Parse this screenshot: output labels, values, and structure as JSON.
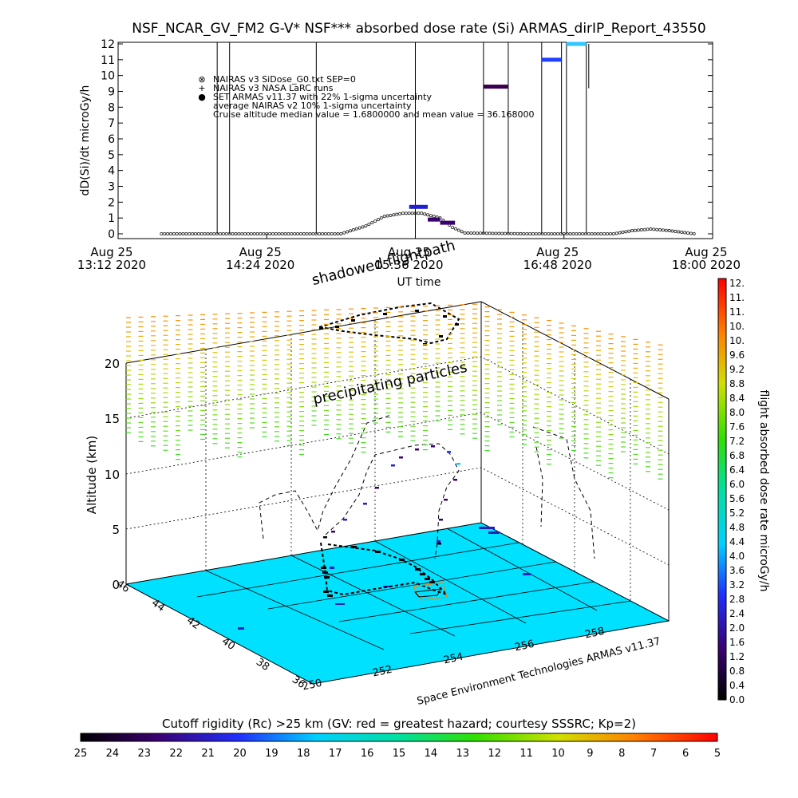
{
  "top_chart": {
    "title": "NSF_NCAR_GV_FM2 G-V* NSF*** absorbed dose rate (Si) ARMAS_dirIP_Report_43550",
    "ylabel": "dD(Si)/dt microGy/h",
    "xlabel": "UT time",
    "yticks": [
      "0",
      "1",
      "2",
      "3",
      "4",
      "5",
      "6",
      "7",
      "8",
      "9",
      "10",
      "11",
      "12"
    ],
    "xticks": [
      {
        "line1": "Aug 25",
        "line2": "13:12 2020"
      },
      {
        "line1": "Aug 25",
        "line2": "14:24 2020"
      },
      {
        "line1": "Aug 25",
        "line2": "15:36 2020"
      },
      {
        "line1": "Aug 25",
        "line2": "16:48 2020"
      },
      {
        "line1": "Aug 25",
        "line2": "18:00 2020"
      }
    ],
    "legend": [
      {
        "symbol": "⊗",
        "text": "NAIRAS v3 SiDose_G0.txt SEP=0"
      },
      {
        "symbol": "+",
        "text": "NAIRAS v3 NASA LaRC runs"
      },
      {
        "symbol": "●",
        "text": "SET ARMAS v11.37 with 22% 1-sigma uncertainty"
      },
      {
        "symbol": "",
        "text": "average NAIRAS v2 10% 1-sigma uncertainty"
      },
      {
        "symbol": "",
        "text": "Cruise altitude median value = 1.6800000 and mean value = 36.168000"
      }
    ]
  },
  "chart_data": {
    "type": "line",
    "x_axis": "UT time (hours, Aug 25 2020)",
    "ylim": [
      0,
      12
    ],
    "xlim": [
      "13:12",
      "18:00"
    ],
    "series": [
      {
        "name": "NAIRAS v3 SiDose_G0.txt SEP=0",
        "color": "#000000",
        "points": [
          [
            13.5,
            0
          ],
          [
            14.0,
            0
          ],
          [
            14.5,
            0
          ],
          [
            15.0,
            0
          ],
          [
            15.2,
            0.5
          ],
          [
            15.35,
            1.1
          ],
          [
            15.5,
            1.3
          ],
          [
            15.65,
            1.3
          ],
          [
            15.8,
            1.0
          ],
          [
            15.9,
            0.4
          ],
          [
            16.0,
            0.05
          ],
          [
            16.5,
            0
          ],
          [
            17.0,
            0
          ],
          [
            17.2,
            0
          ],
          [
            17.35,
            0.2
          ],
          [
            17.5,
            0.3
          ],
          [
            17.65,
            0.2
          ],
          [
            17.85,
            0
          ]
        ]
      },
      {
        "name": "SET ARMAS v11.37 with 22% 1-sigma uncertainty",
        "color": "#2020d0",
        "segments": [
          {
            "t0": 15.55,
            "t1": 15.7,
            "value": 1.7
          },
          {
            "t0": 15.7,
            "t1": 15.8,
            "value": 0.9
          },
          {
            "t0": 15.8,
            "t1": 15.92,
            "value": 0.7
          },
          {
            "t0": 16.15,
            "t1": 16.35,
            "value": 9.3
          },
          {
            "t0": 16.62,
            "t1": 16.78,
            "value": 11.0
          },
          {
            "t0": 16.82,
            "t1": 16.98,
            "value": 12.0
          }
        ]
      }
    ]
  },
  "scene3d": {
    "title_shadow": "shadowed flightpath",
    "label_precip": "precipitating particles",
    "zlabel": "Altitude (km)",
    "zticks": [
      "0",
      "5",
      "10",
      "15",
      "20"
    ],
    "lat_ticks": [
      "36",
      "38",
      "40",
      "42",
      "44",
      "46"
    ],
    "lon_ticks": [
      "250",
      "252",
      "254",
      "256",
      "258"
    ],
    "credit": "Space Environment Technologies ARMAS v11.37"
  },
  "right_colorbar": {
    "label": "flight absorbed dose rate microGy/h",
    "ticks": [
      "12.",
      "11.",
      "11.",
      "10.",
      "10.",
      "9.6",
      "9.2",
      "8.8",
      "8.4",
      "8.0",
      "7.6",
      "7.2",
      "6.8",
      "6.4",
      "6.0",
      "5.6",
      "5.2",
      "4.8",
      "4.4",
      "4.0",
      "3.6",
      "3.2",
      "2.8",
      "2.4",
      "2.0",
      "1.6",
      "1.2",
      "0.8",
      "0.4",
      "0.0"
    ]
  },
  "bottom_colorbar": {
    "label": "Cutoff rigidity (Rc) >25 km (GV: red = greatest hazard; courtesy SSSRC; Kp=2)",
    "ticks": [
      "25",
      "24",
      "23",
      "22",
      "21",
      "20",
      "19",
      "18",
      "17",
      "16",
      "15",
      "14",
      "13",
      "12",
      "11",
      "10",
      "9",
      "8",
      "7",
      "6",
      "5"
    ]
  },
  "colors": {
    "map_surface": "#00e0ff",
    "armas_points": "#2020d0",
    "scale_low": "#000000",
    "scale_high": "#ff0000"
  }
}
